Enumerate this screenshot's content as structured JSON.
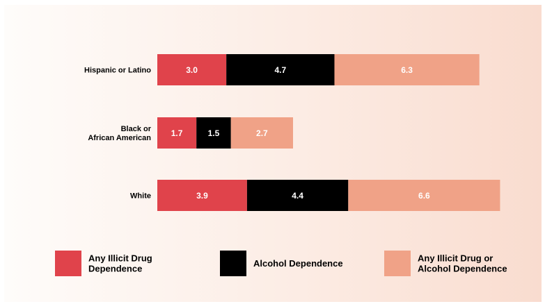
{
  "chart_data": {
    "type": "bar",
    "orientation": "horizontal",
    "stacked": true,
    "categories": [
      [
        "Hispanic or Latino"
      ],
      [
        "Black or",
        "African American"
      ],
      [
        "White"
      ]
    ],
    "series": [
      {
        "name": "Any Illicit Drug Dependence",
        "legend_lines": [
          "Any Illicit Drug",
          "Dependence"
        ],
        "color": "#e0434b",
        "values": [
          3.0,
          1.7,
          3.9
        ],
        "labels": [
          "3.0",
          "1.7",
          "3.9"
        ]
      },
      {
        "name": "Alcohol Dependence",
        "legend_lines": [
          "Alcohol Dependence"
        ],
        "color": "#000000",
        "values": [
          4.7,
          1.5,
          4.4
        ],
        "labels": [
          "4.7",
          "1.5",
          "4.4"
        ]
      },
      {
        "name": "Any Illicit Drug or Alcohol Dependence",
        "legend_lines": [
          "Any Illicit Drug or",
          "Alcohol Dependence"
        ],
        "color": "#f0a287",
        "values": [
          6.3,
          2.7,
          6.6
        ],
        "labels": [
          "6.3",
          "2.7",
          "6.6"
        ]
      }
    ],
    "grid": false,
    "legend_position": "bottom"
  }
}
